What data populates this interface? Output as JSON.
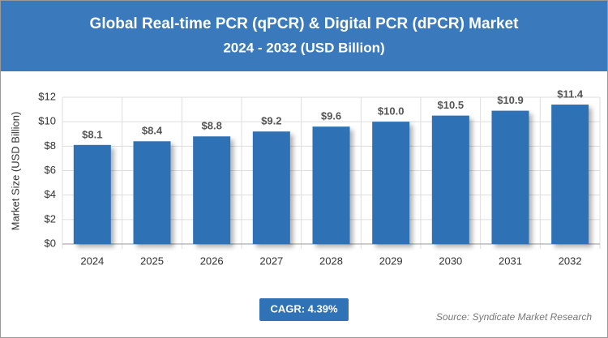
{
  "chart_data": {
    "type": "bar",
    "title": "Global Real-time PCR (qPCR) & Digital PCR (dPCR) Market",
    "subtitle": "2024 - 2032 (USD Billion)",
    "y_label": "Market Size (USD Billion)",
    "categories": [
      "2024",
      "2025",
      "2026",
      "2027",
      "2028",
      "2029",
      "2030",
      "2031",
      "2032"
    ],
    "values": [
      8.1,
      8.4,
      8.8,
      9.2,
      9.6,
      10.0,
      10.5,
      10.9,
      11.4
    ],
    "value_labels": [
      "$8.1",
      "$8.4",
      "$8.8",
      "$9.2",
      "$9.6",
      "$10.0",
      "$10.5",
      "$10.9",
      "$11.4"
    ],
    "color": "#2f72b5",
    "ylim": [
      0,
      12
    ],
    "yticks": [
      {
        "value": 0,
        "label": "$0"
      },
      {
        "value": 2,
        "label": "$2"
      },
      {
        "value": 4,
        "label": "$4"
      },
      {
        "value": 6,
        "label": "$6"
      },
      {
        "value": 8,
        "label": "$8"
      },
      {
        "value": 10,
        "label": "$10"
      },
      {
        "value": 12,
        "label": "$12"
      }
    ],
    "grid": true,
    "annotation": "CAGR: 4.39%",
    "source": "Source: Syndicate Market Research"
  }
}
